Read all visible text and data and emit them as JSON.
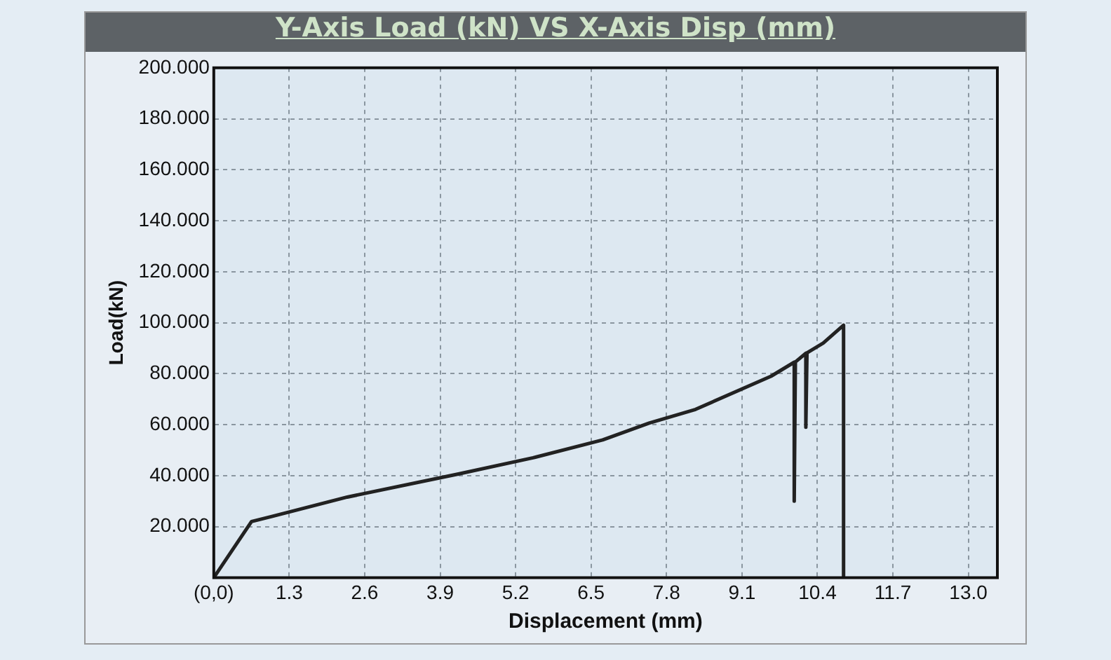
{
  "chart_data": {
    "type": "line",
    "title": "Y-Axis Load (kN) VS X-Axis Disp (mm)",
    "xlabel": "Displacement (mm)",
    "ylabel": "Load(kN)",
    "x": [
      0,
      0.65,
      1.0,
      2.3,
      4.2,
      5.5,
      6.7,
      7.5,
      8.3,
      9.6,
      10.0,
      10.0,
      10.02,
      10.2,
      10.2,
      10.22,
      10.5,
      10.85,
      10.85
    ],
    "series": [
      {
        "color": "#222222",
        "values": [
          0,
          22,
          24,
          31.6,
          40.6,
          47,
          54,
          60.6,
          66,
          79,
          84.5,
          30,
          84.6,
          88,
          59,
          88.2,
          92,
          99,
          0
        ]
      }
    ],
    "xlim": [
      0,
      13.5
    ],
    "xticks": [
      {
        "value": 0,
        "label": "(0,0)"
      },
      1.3,
      2.6,
      3.9,
      5.2,
      6.5,
      7.8,
      9.1,
      10.4,
      11.7,
      {
        "value": 13,
        "label": "13.0"
      }
    ],
    "ylim": [
      0,
      200
    ],
    "yticks": [
      {
        "value": 20,
        "label": "20.000"
      },
      {
        "value": 40,
        "label": "40.000"
      },
      {
        "value": 60,
        "label": "60.000"
      },
      {
        "value": 80,
        "label": "80.000"
      },
      {
        "value": 100,
        "label": "100.000"
      },
      {
        "value": 120,
        "label": "120.000"
      },
      {
        "value": 140,
        "label": "140.000"
      },
      {
        "value": 160,
        "label": "160.000"
      },
      {
        "value": 180,
        "label": "180.000"
      },
      {
        "value": 200,
        "label": "200.000"
      }
    ],
    "grid": true,
    "line_style": "solid",
    "legend": false
  }
}
